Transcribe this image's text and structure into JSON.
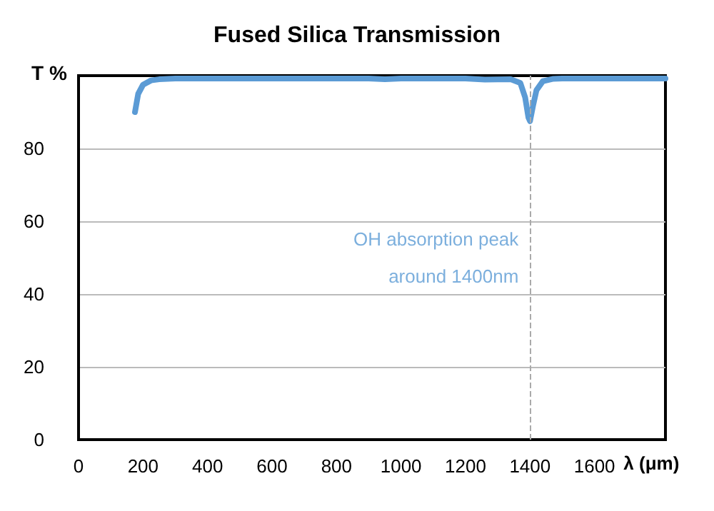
{
  "chart_data": {
    "type": "line",
    "title": "Fused Silica Transmission",
    "xlabel": "λ (μm)",
    "ylabel": "T %",
    "x": [
      175,
      185,
      200,
      225,
      250,
      300,
      600,
      900,
      950,
      1000,
      1200,
      1260,
      1340,
      1370,
      1385,
      1395,
      1400,
      1410,
      1420,
      1440,
      1470,
      1500,
      1820
    ],
    "series": [
      {
        "color": "#5b9bd5",
        "values": [
          90,
          95,
          97.5,
          98.7,
          99,
          99.2,
          99.2,
          99.2,
          99,
          99.2,
          99.2,
          98.9,
          99,
          98,
          94,
          88.5,
          87.5,
          92,
          96,
          98.5,
          99.1,
          99.2,
          99.2
        ]
      }
    ],
    "xlim": [
      0,
      1820
    ],
    "xticks": [
      0,
      200,
      400,
      600,
      800,
      1000,
      1200,
      1400,
      1600
    ],
    "ylim": [
      0,
      100
    ],
    "yticks": [
      0,
      20,
      40,
      60,
      80
    ],
    "ref_lines": [
      {
        "axis": "x",
        "value": 1400,
        "color": "#aaaaaa",
        "line_style": "dashed"
      }
    ],
    "annotations": [
      {
        "text": "OH absorption peak\naround 1400nm",
        "x": 1400,
        "y": 50
      }
    ],
    "grid": "y",
    "marker": "none",
    "line_style": "solid"
  }
}
